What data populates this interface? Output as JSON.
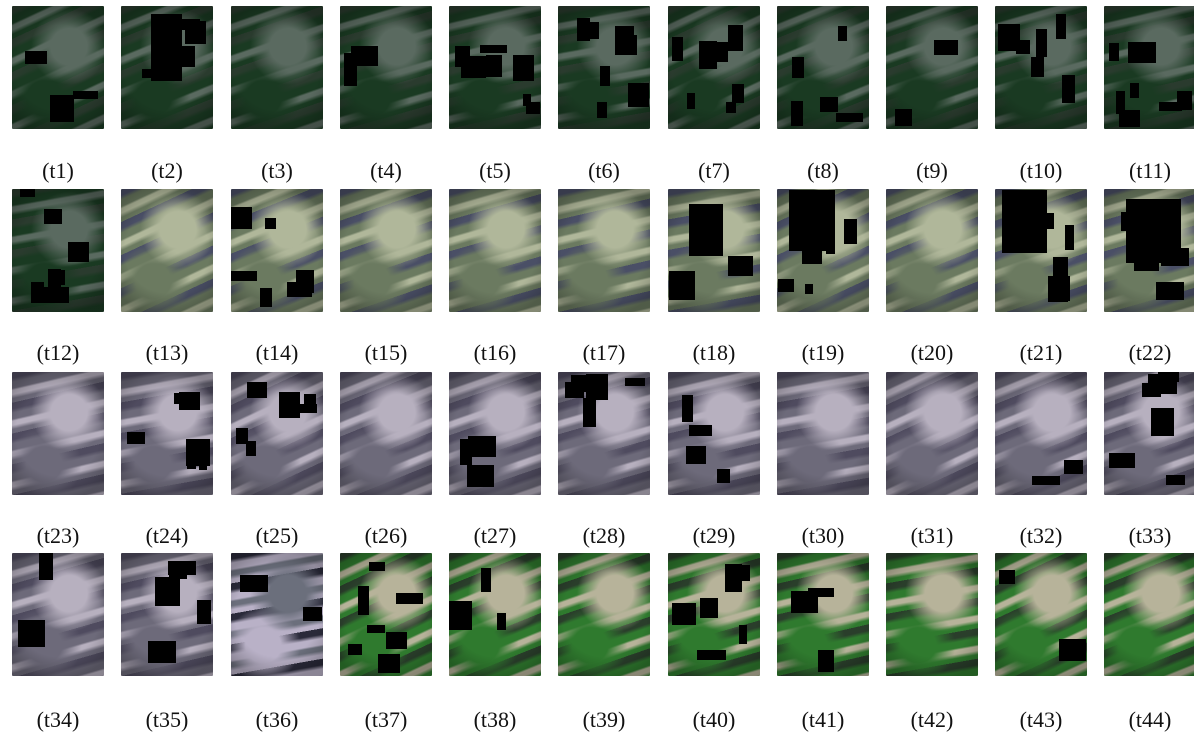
{
  "figure": {
    "panels": [
      {
        "label": "(t1)",
        "palette": "dark-green",
        "masked": true
      },
      {
        "label": "(t2)",
        "palette": "dark-green",
        "masked": true
      },
      {
        "label": "(t3)",
        "palette": "dark-green",
        "masked": false
      },
      {
        "label": "(t4)",
        "palette": "dark-green",
        "masked": true
      },
      {
        "label": "(t5)",
        "palette": "dark-green",
        "masked": true
      },
      {
        "label": "(t6)",
        "palette": "dark-green",
        "masked": true
      },
      {
        "label": "(t7)",
        "palette": "dark-green",
        "masked": true
      },
      {
        "label": "(t8)",
        "palette": "dark-green",
        "masked": true
      },
      {
        "label": "(t9)",
        "palette": "dark-green",
        "masked": true
      },
      {
        "label": "(t10)",
        "palette": "dark-green",
        "masked": true
      },
      {
        "label": "(t11)",
        "palette": "dark-green",
        "masked": true
      },
      {
        "label": "(t12)",
        "palette": "dark-green",
        "masked": true
      },
      {
        "label": "(t13)",
        "palette": "grey-blue",
        "masked": false
      },
      {
        "label": "(t14)",
        "palette": "grey-blue",
        "masked": true
      },
      {
        "label": "(t15)",
        "palette": "grey-blue",
        "masked": false
      },
      {
        "label": "(t16)",
        "palette": "grey-blue",
        "masked": false
      },
      {
        "label": "(t17)",
        "palette": "grey-blue",
        "masked": false
      },
      {
        "label": "(t18)",
        "palette": "grey-blue",
        "masked": true
      },
      {
        "label": "(t19)",
        "palette": "grey-blue",
        "masked": true
      },
      {
        "label": "(t20)",
        "palette": "grey-blue",
        "masked": false
      },
      {
        "label": "(t21)",
        "palette": "grey-blue",
        "masked": true
      },
      {
        "label": "(t22)",
        "palette": "grey-blue",
        "masked": true
      },
      {
        "label": "(t23)",
        "palette": "grey-violet",
        "masked": false
      },
      {
        "label": "(t24)",
        "palette": "grey-violet",
        "masked": true
      },
      {
        "label": "(t25)",
        "palette": "grey-violet",
        "masked": true
      },
      {
        "label": "(t26)",
        "palette": "grey-violet",
        "masked": false
      },
      {
        "label": "(t27)",
        "palette": "grey-violet",
        "masked": true
      },
      {
        "label": "(t28)",
        "palette": "grey-violet",
        "masked": true
      },
      {
        "label": "(t29)",
        "palette": "grey-violet",
        "masked": true
      },
      {
        "label": "(t30)",
        "palette": "grey-violet",
        "masked": false
      },
      {
        "label": "(t31)",
        "palette": "grey-violet",
        "masked": false
      },
      {
        "label": "(t32)",
        "palette": "grey-violet",
        "masked": true
      },
      {
        "label": "(t33)",
        "palette": "grey-violet",
        "masked": true
      },
      {
        "label": "(t34)",
        "palette": "grey-violet",
        "masked": true
      },
      {
        "label": "(t35)",
        "palette": "grey-violet",
        "masked": true
      },
      {
        "label": "(t36)",
        "palette": "mixed",
        "masked": true
      },
      {
        "label": "(t37)",
        "palette": "bright-green",
        "masked": true
      },
      {
        "label": "(t38)",
        "palette": "bright-green",
        "masked": true
      },
      {
        "label": "(t39)",
        "palette": "bright-green",
        "masked": false
      },
      {
        "label": "(t40)",
        "palette": "bright-green",
        "masked": true
      },
      {
        "label": "(t41)",
        "palette": "bright-green",
        "masked": true
      },
      {
        "label": "(t42)",
        "palette": "bright-green",
        "masked": false
      },
      {
        "label": "(t43)",
        "palette": "bright-green",
        "masked": true
      },
      {
        "label": "(t44)",
        "palette": "bright-green",
        "masked": false
      }
    ],
    "palettes": {
      "dark-green": [
        "#0c2414",
        "#1a3a22",
        "#5a6a60",
        "#2a3b2e"
      ],
      "grey-blue": [
        "#2b2d44",
        "#6b7a60",
        "#b0b79a",
        "#4a4f66"
      ],
      "grey-violet": [
        "#2c2a3a",
        "#6d6a7a",
        "#b7b0bf",
        "#4f4b5f"
      ],
      "mixed": [
        "#1f3a22",
        "#b9b1c7",
        "#6b6f7c",
        "#2a2a3a"
      ],
      "bright-green": [
        "#1e5a1d",
        "#2f7a2e",
        "#b7b39a",
        "#2a3e2b"
      ]
    }
  }
}
